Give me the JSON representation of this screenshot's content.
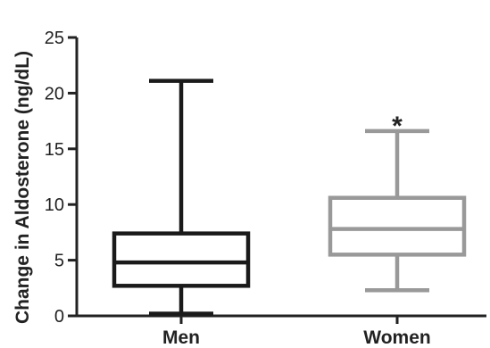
{
  "chart_data": {
    "type": "box",
    "ylabel": "Change in Aldosterone (ng/dL)",
    "xlabel": "",
    "ylim": [
      0,
      25
    ],
    "yticks": [
      0,
      5,
      10,
      15,
      20,
      25
    ],
    "categories": [
      "Men",
      "Women"
    ],
    "boxes": [
      {
        "category": "Men",
        "min": 0.2,
        "q1": 2.7,
        "median": 4.8,
        "q3": 7.4,
        "max": 21.1,
        "color": "#1a1a1a"
      },
      {
        "category": "Women",
        "min": 2.3,
        "q1": 5.5,
        "median": 7.8,
        "q3": 10.6,
        "max": 16.6,
        "color": "#999999"
      }
    ],
    "annotations": [
      {
        "category": "Women",
        "text": "*"
      }
    ]
  }
}
